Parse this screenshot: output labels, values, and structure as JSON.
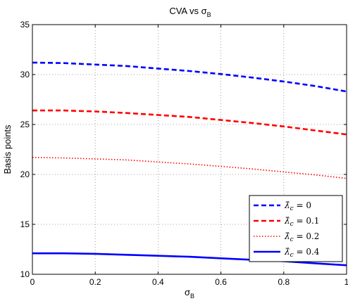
{
  "chart_data": {
    "type": "line",
    "title_prefix": "CVA vs ",
    "title_symbol": "σ",
    "title_sub": "B",
    "xlabel_symbol": "σ",
    "xlabel_sub": "B",
    "ylabel": "Basis points",
    "xlim": [
      0,
      1
    ],
    "ylim": [
      10,
      35
    ],
    "xticks": [
      0,
      0.2,
      0.4,
      0.6,
      0.8,
      1
    ],
    "yticks": [
      10,
      15,
      20,
      25,
      30,
      35
    ],
    "xtick_labels": [
      "0",
      "0.2",
      "0.4",
      "0.6",
      "0.8",
      "1"
    ],
    "ytick_labels": [
      "10",
      "15",
      "20",
      "25",
      "30",
      "35"
    ],
    "grid": true,
    "legend_position": "bottom-right",
    "x": [
      0,
      0.1,
      0.2,
      0.3,
      0.4,
      0.5,
      0.6,
      0.7,
      0.8,
      0.9,
      1.0
    ],
    "series": [
      {
        "name": "λ̂c = 0",
        "label_head": "λ̂",
        "label_sub": "c",
        "label_tail": " = 0",
        "color": "#0000ff",
        "style": "dashed",
        "values": [
          31.2,
          31.15,
          31.0,
          30.85,
          30.6,
          30.35,
          30.05,
          29.7,
          29.3,
          28.85,
          28.3
        ]
      },
      {
        "name": "λ̂c = 0.1",
        "label_head": "λ̂",
        "label_sub": "c",
        "label_tail": " = 0.1",
        "color": "#ff0000",
        "style": "dashed",
        "values": [
          26.4,
          26.4,
          26.3,
          26.15,
          25.95,
          25.75,
          25.45,
          25.15,
          24.8,
          24.4,
          24.0
        ]
      },
      {
        "name": "λ̂c = 0.2",
        "label_head": "λ̂",
        "label_sub": "c",
        "label_tail": " = 0.2",
        "color": "#ff0000",
        "style": "dotted",
        "values": [
          21.7,
          21.65,
          21.55,
          21.45,
          21.25,
          21.05,
          20.8,
          20.55,
          20.25,
          19.95,
          19.6
        ]
      },
      {
        "name": "λ̂c = 0.4",
        "label_head": "λ̂",
        "label_sub": "c",
        "label_tail": " = 0.4",
        "color": "#0000ff",
        "style": "solid",
        "values": [
          12.1,
          12.1,
          12.05,
          11.95,
          11.85,
          11.75,
          11.6,
          11.45,
          11.3,
          11.1,
          10.9
        ]
      }
    ]
  }
}
